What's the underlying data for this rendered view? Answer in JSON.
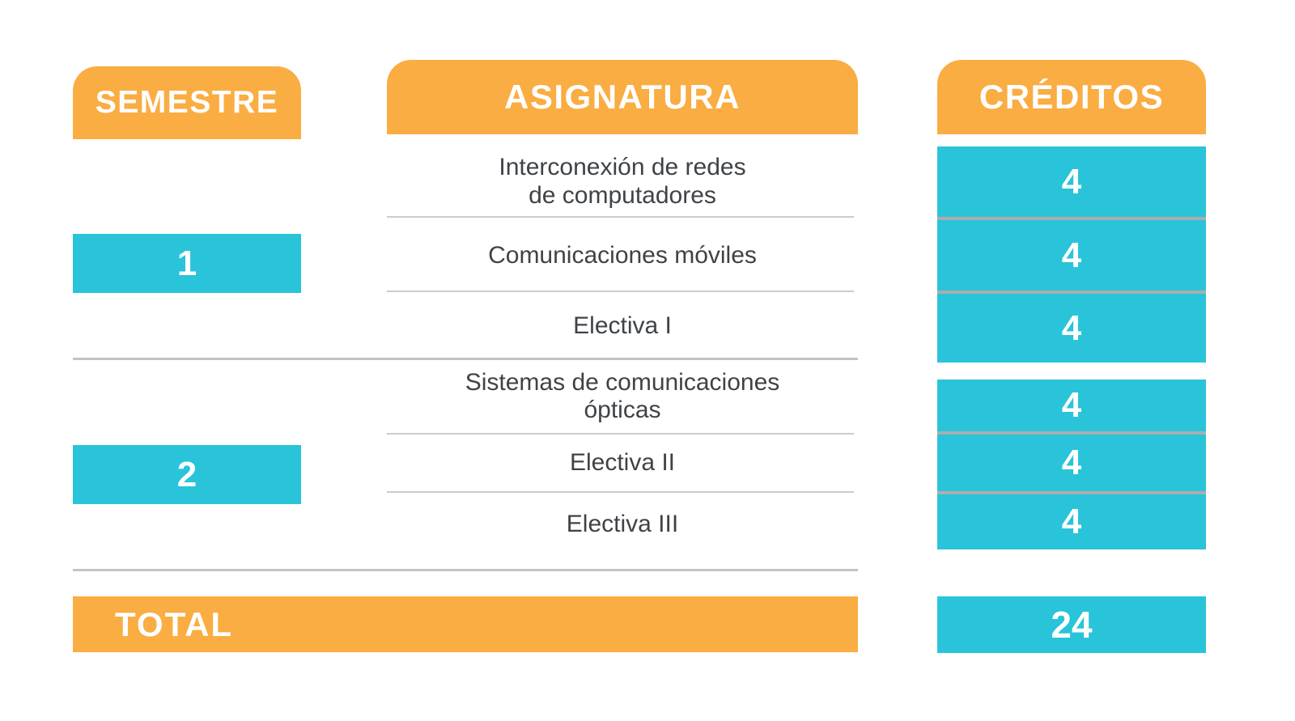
{
  "chart_data": {
    "type": "table",
    "title": "",
    "columns": [
      "SEMESTRE",
      "ASIGNATURA",
      "CRÉDITOS"
    ],
    "rows": [
      {
        "semestre": "1",
        "asignatura": "Interconexión de redes de computadores",
        "creditos": 4
      },
      {
        "semestre": "1",
        "asignatura": "Comunicaciones móviles",
        "creditos": 4
      },
      {
        "semestre": "1",
        "asignatura": "Electiva I",
        "creditos": 4
      },
      {
        "semestre": "2",
        "asignatura": "Sistemas de comunicaciones ópticas",
        "creditos": 4
      },
      {
        "semestre": "2",
        "asignatura": "Electiva II",
        "creditos": 4
      },
      {
        "semestre": "2",
        "asignatura": "Electiva III",
        "creditos": 4
      }
    ],
    "total": {
      "label": "TOTAL",
      "creditos": 24
    }
  },
  "ui": {
    "headers": {
      "semester": "SEMESTRE",
      "course": "ASIGNATURA",
      "credits": "CRÉDITOS"
    },
    "semesters": [
      {
        "number": "1",
        "courses": [
          {
            "name": "Interconexión de redes\nde computadores",
            "credits": "4"
          },
          {
            "name": "Comunicaciones móviles",
            "credits": "4"
          },
          {
            "name": "Electiva I",
            "credits": "4"
          }
        ]
      },
      {
        "number": "2",
        "courses": [
          {
            "name": "Sistemas de comunicaciones\nópticas",
            "credits": "4"
          },
          {
            "name": "Electiva II",
            "credits": "4"
          },
          {
            "name": "Electiva III",
            "credits": "4"
          }
        ]
      }
    ],
    "total": {
      "label": "TOTAL",
      "credits": "24"
    }
  },
  "colors": {
    "orange": "#FAAD42",
    "cyan": "#29C4D9",
    "text": "#3F4347",
    "divider": "#C0C4C8",
    "rule": "#C9CDD0",
    "credit_sep": "#ADADAD",
    "on_accent": "#FFFFFF"
  }
}
